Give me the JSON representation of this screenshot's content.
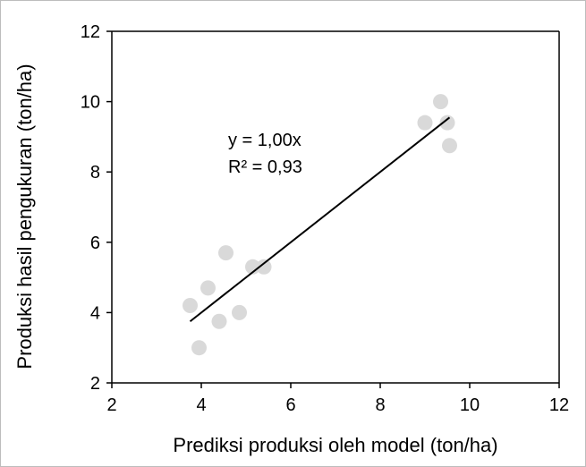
{
  "chart_data": {
    "type": "scatter",
    "xlabel": "Prediksi produksi oleh model (ton/ha)",
    "ylabel": "Produksi hasil pengukuran   (ton/ha)",
    "xlim": [
      2,
      12
    ],
    "ylim": [
      2,
      12
    ],
    "xticks": [
      "2",
      "4",
      "6",
      "8",
      "10",
      "12"
    ],
    "yticks": [
      "2",
      "4",
      "6",
      "8",
      "10",
      "12"
    ],
    "grid": false,
    "points": [
      {
        "x": 3.75,
        "y": 4.2
      },
      {
        "x": 3.95,
        "y": 3.0
      },
      {
        "x": 4.15,
        "y": 4.7
      },
      {
        "x": 4.4,
        "y": 3.75
      },
      {
        "x": 4.55,
        "y": 5.7
      },
      {
        "x": 4.85,
        "y": 4.0
      },
      {
        "x": 5.15,
        "y": 5.3
      },
      {
        "x": 5.4,
        "y": 5.3
      },
      {
        "x": 9.0,
        "y": 9.4
      },
      {
        "x": 9.35,
        "y": 10.0
      },
      {
        "x": 9.5,
        "y": 9.4
      },
      {
        "x": 9.55,
        "y": 8.75
      }
    ],
    "trendline": {
      "x": [
        3.75,
        9.55
      ],
      "y": [
        3.75,
        9.55
      ]
    },
    "equation": "y = 1,00x",
    "r2": "R² = 0,93",
    "point_color": "#d9d9d9",
    "line_color": "#000000"
  }
}
